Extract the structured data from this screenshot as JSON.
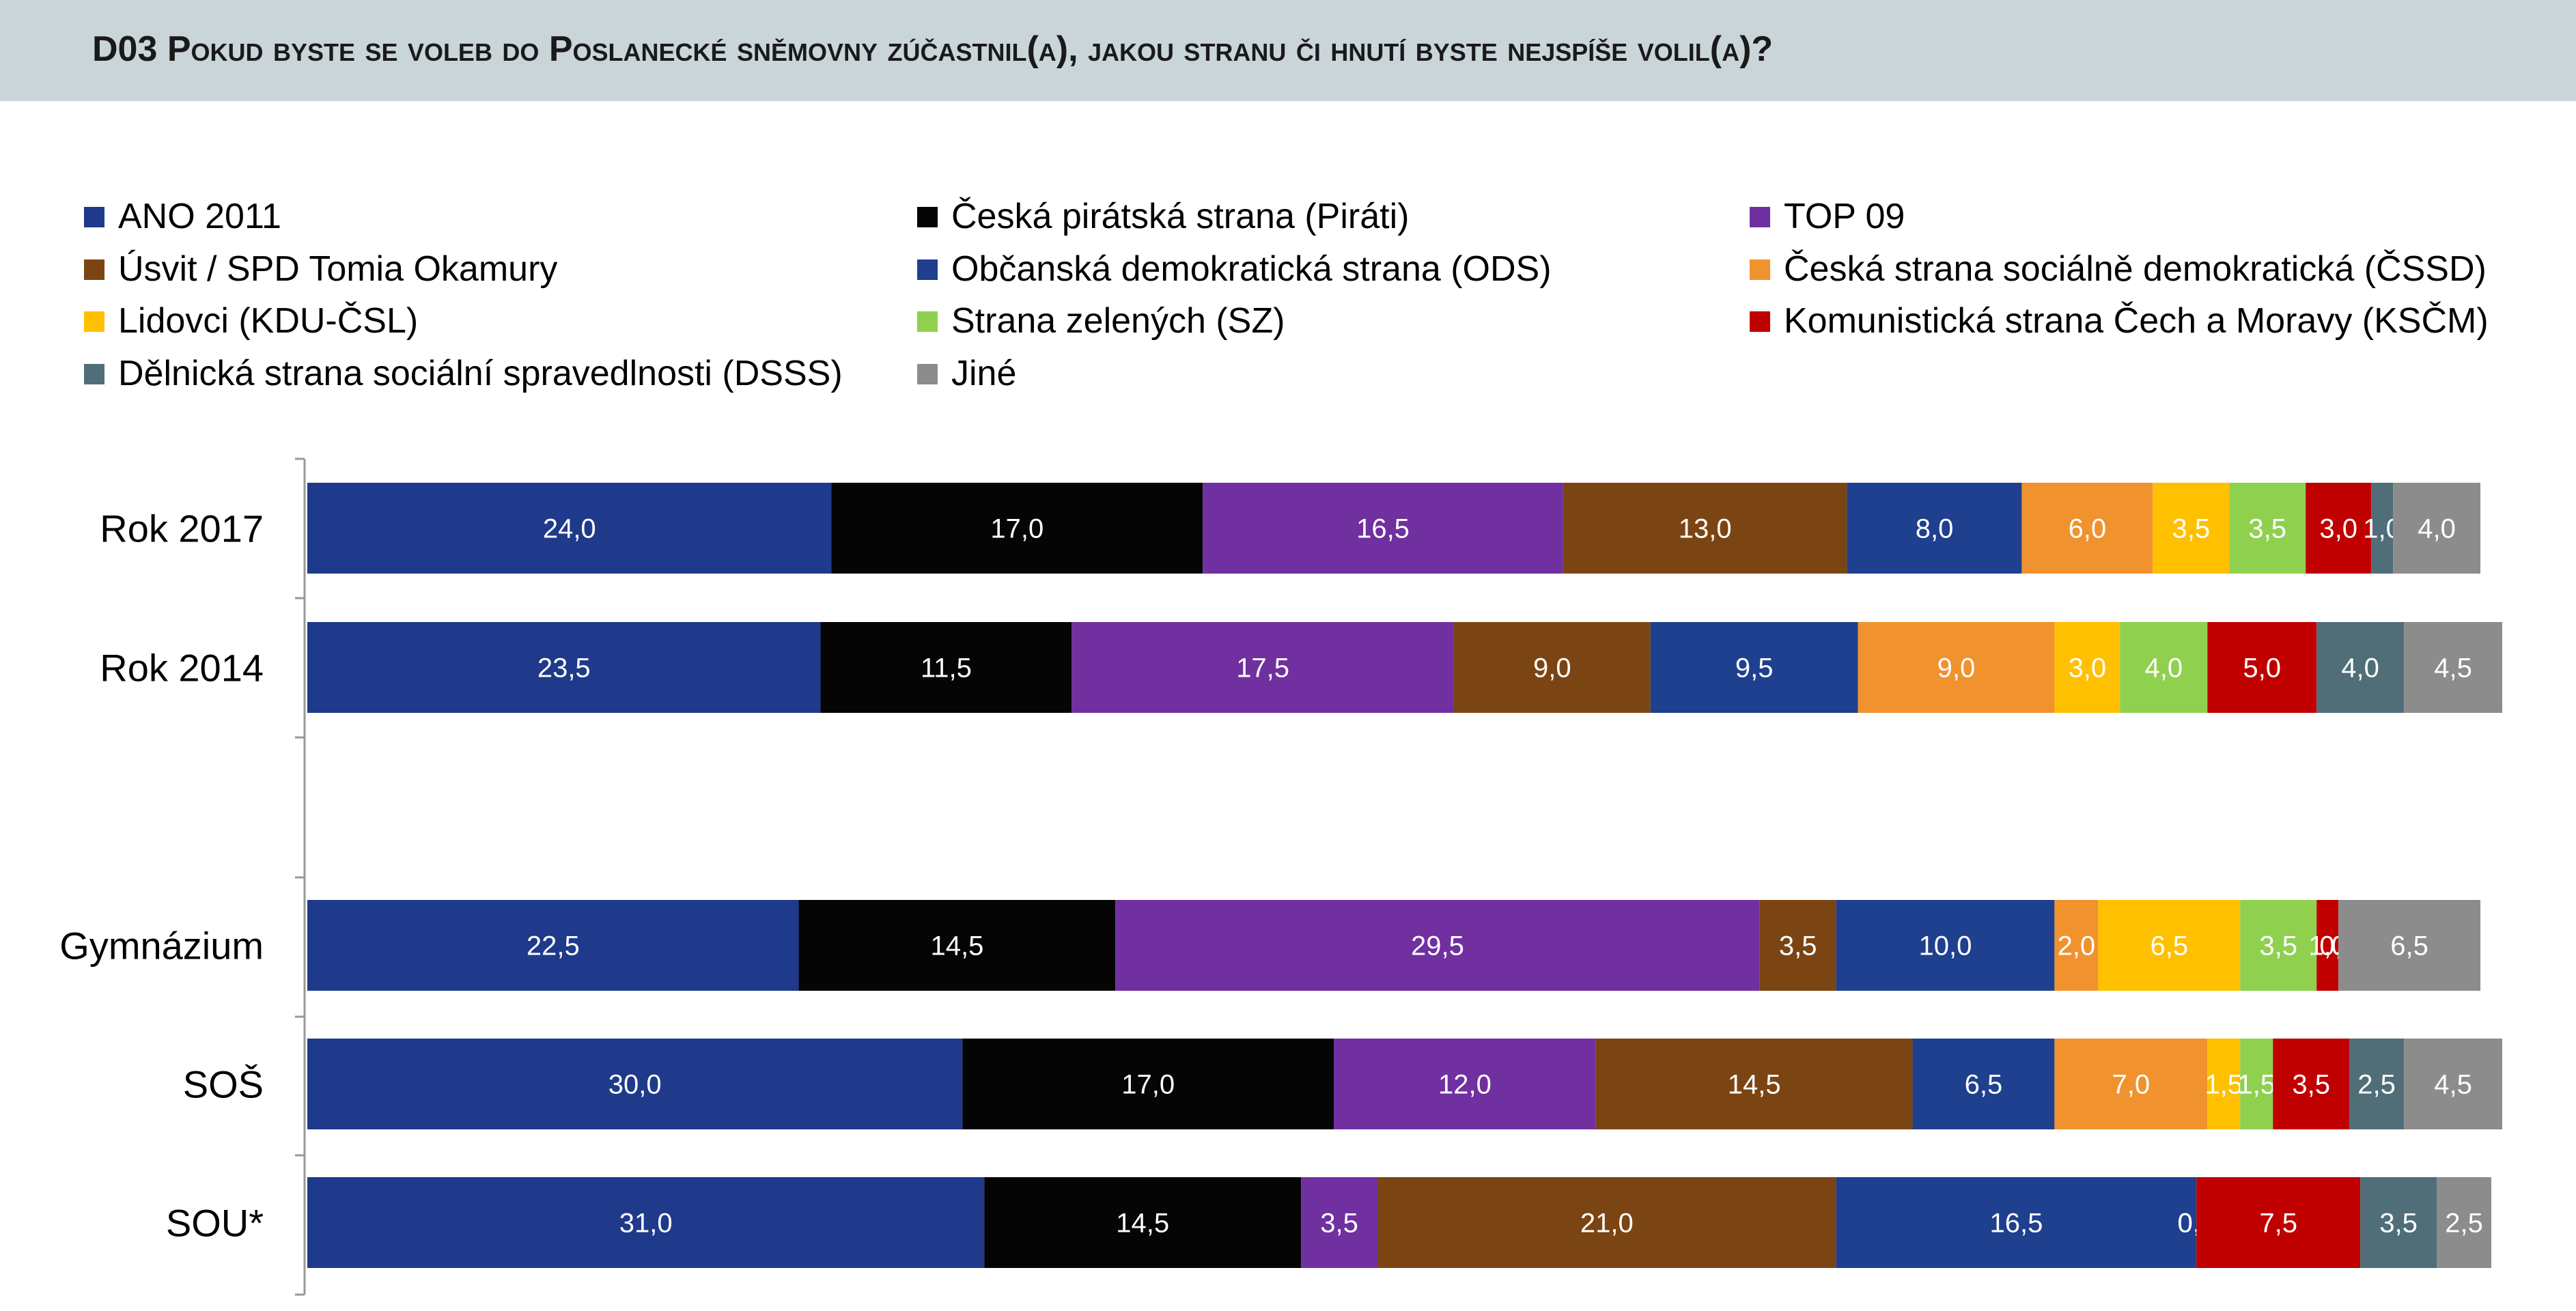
{
  "title_prefix": "D03",
  "title_text": "Pokud byste se voleb do Poslanecké sněmovny zúčastnil(a), jakou stranu či hnutí byste nejspíše volil(a)?",
  "chart_data": {
    "type": "bar",
    "orientation": "horizontal",
    "stacked": true,
    "categories": [
      "Rok 2017",
      "Rok 2014",
      "Gymnázium",
      "SOŠ",
      "SOU*"
    ],
    "series": [
      {
        "name": "ANO 2011",
        "color": "#1f3a8a",
        "label_color": "#ffffff",
        "values": [
          24.0,
          23.5,
          22.5,
          30.0,
          31.0
        ],
        "labels": [
          "24,0",
          "23,5",
          "22,5",
          "30,0",
          "31,0"
        ]
      },
      {
        "name": "Česká pirátská strana (Piráti)",
        "color": "#050505",
        "label_color": "#ffffff",
        "values": [
          17.0,
          11.5,
          14.5,
          17.0,
          14.5
        ],
        "labels": [
          "17,0",
          "11,5",
          "14,5",
          "17,0",
          "14,5"
        ]
      },
      {
        "name": "TOP 09",
        "color": "#7030a0",
        "label_color": "#ffffff",
        "values": [
          16.5,
          17.5,
          29.5,
          12.0,
          3.5
        ],
        "labels": [
          "16,5",
          "17,5",
          "29,5",
          "12,0",
          "3,5"
        ]
      },
      {
        "name": "Úsvit / SPD Tomia Okamury",
        "color": "#7b4513",
        "label_color": "#ffffff",
        "values": [
          13.0,
          9.0,
          3.5,
          14.5,
          21.0
        ],
        "labels": [
          "13,0",
          "9,0",
          "3,5",
          "14,5",
          "21,0"
        ]
      },
      {
        "name": "Občanská demokratická strana (ODS)",
        "color": "#1f3f8f",
        "label_color": "#ffffff",
        "values": [
          8.0,
          9.5,
          10.0,
          6.5,
          16.5
        ],
        "labels": [
          "8,0",
          "9,5",
          "10,0",
          "6,5",
          "16,5"
        ]
      },
      {
        "name": "Česká strana sociálně demokratická (ČSSD)",
        "color": "#f0922e",
        "label_color": "#ffffff",
        "values": [
          6.0,
          9.0,
          2.0,
          7.0,
          0.0
        ],
        "labels": [
          "6,0",
          "9,0",
          "2,0",
          "7,0",
          "0,0"
        ]
      },
      {
        "name": "Lidovci (KDU-ČSL)",
        "color": "#ffc000",
        "label_color": "#ffffff",
        "values": [
          3.5,
          3.0,
          6.5,
          1.5,
          0.0
        ],
        "labels": [
          "3,5",
          "3,0",
          "6,5",
          "1,5",
          "0,0"
        ]
      },
      {
        "name": "Strana zelených (SZ)",
        "color": "#8fd14f",
        "label_color": "#ffffff",
        "values": [
          3.5,
          4.0,
          3.5,
          1.5,
          0.0
        ],
        "labels": [
          "3,5",
          "4,0",
          "3,5",
          "1,5",
          ""
        ]
      },
      {
        "name": "Komunistická strana Čech a Moravy (KSČM)",
        "color": "#c00000",
        "label_color": "#ffffff",
        "values": [
          3.0,
          5.0,
          1.0,
          3.5,
          7.5
        ],
        "labels": [
          "3,0",
          "5,0",
          "1,0",
          "3,5",
          "7,5"
        ]
      },
      {
        "name": "Dělnická strana sociální spravedlnosti (DSSS)",
        "color": "#4f6e78",
        "label_color": "#ffffff",
        "values": [
          1.0,
          4.0,
          0.0,
          2.5,
          3.5
        ],
        "labels": [
          "1,0",
          "4,0",
          "0,0",
          "2,5",
          "3,5"
        ]
      },
      {
        "name": "Jiné",
        "color": "#8c8c8c",
        "label_color": "#ffffff",
        "values": [
          4.0,
          4.5,
          6.5,
          4.5,
          2.5
        ],
        "labels": [
          "4,0",
          "4,5",
          "6,5",
          "4,5",
          "2,5"
        ]
      }
    ],
    "xlim": [
      0,
      100
    ],
    "legend_position": "top",
    "grid": false
  }
}
